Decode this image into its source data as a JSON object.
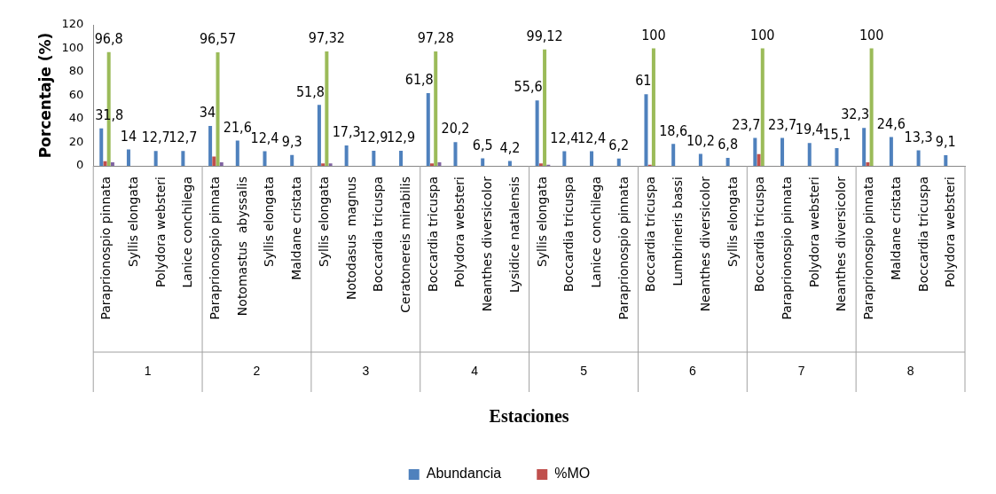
{
  "chart_data": {
    "type": "bar",
    "xlabel": "Estaciones",
    "ylabel": "Porcentaje (%)",
    "categories": [
      "Paraprionospio pinnata",
      "Syllis elongata",
      "Polydora websteri",
      "Lanice conchilega",
      "Paraprionospio pinnata",
      "Notomastus  abyssalis",
      "Syllis elongata",
      "Maldane cristata",
      "Syllis elongata",
      "Notodasus  magnus",
      "Boccardia tricuspa",
      "Ceratonereis mirabilis",
      "Boccardia tricuspa",
      "Polydora websteri",
      "Neanthes diversicolor",
      "Lysidice natalensis",
      "Syllis elongata",
      "Boccardia tricuspa",
      "Lanice conchilega",
      "Paraprionospio pinnata",
      "Boccardia tricuspa",
      "Lumbrineris bassi",
      "Neanthes diversicolor",
      "Syllis elongata",
      "Boccardia tricuspa",
      "Paraprionospio pinnata",
      "Polydora websteri",
      "Neanthes diversicolor",
      "Paraprionospio pinnata",
      "Maldane cristata",
      "Boccardia tricuspa",
      "Polydora websteri"
    ],
    "annotations": [
      "1",
      "2",
      "3",
      "4",
      "5",
      "6",
      "7",
      "8"
    ],
    "series": [
      {
        "name": "Abundancia",
        "color": "#4f81bd",
        "values": [
          31.8,
          14,
          12.7,
          12.7,
          34,
          21.6,
          12.4,
          9.3,
          51.8,
          17.3,
          12.9,
          12.9,
          61.8,
          20.2,
          6.5,
          4.2,
          55.6,
          12.4,
          12.4,
          6.2,
          61,
          18.6,
          10.2,
          6.8,
          23.7,
          23.7,
          19.4,
          15.1,
          32.3,
          24.6,
          13.3,
          9.1
        ],
        "value_labels": [
          "31,8",
          "14",
          "12,7",
          "12,7",
          "34",
          "21,6",
          "12,4",
          "9,3",
          "51,8",
          "17,3",
          "12,9",
          "12,9",
          "61,8",
          "20,2",
          "6,5",
          "4,2",
          "55,6",
          "12,4",
          "12,4",
          "6,2",
          "61",
          "18,6",
          "10,2",
          "6,8",
          "23,7",
          "23,7",
          "19,4",
          "15,1",
          "32,3",
          "24,6",
          "13,3",
          "9,1"
        ]
      },
      {
        "name": "%MO",
        "color": "#c0504d",
        "values": [
          4,
          null,
          null,
          null,
          8,
          null,
          null,
          null,
          2,
          null,
          null,
          null,
          2,
          null,
          null,
          null,
          2,
          null,
          null,
          null,
          1,
          null,
          null,
          null,
          10,
          null,
          null,
          null,
          3,
          null,
          null,
          null
        ]
      },
      {
        "color": "#9bbb59",
        "values": [
          96.8,
          null,
          null,
          null,
          96.57,
          null,
          null,
          null,
          97.32,
          null,
          null,
          null,
          97.28,
          null,
          null,
          null,
          99.12,
          null,
          null,
          null,
          100,
          null,
          null,
          null,
          100,
          null,
          null,
          null,
          100,
          null,
          null,
          null
        ],
        "value_labels": [
          "96,8",
          null,
          null,
          null,
          "96,57",
          null,
          null,
          null,
          "97,32",
          null,
          null,
          null,
          "97,28",
          null,
          null,
          null,
          "99,12",
          null,
          null,
          null,
          "100",
          null,
          null,
          null,
          "100",
          null,
          null,
          null,
          "100",
          null,
          null,
          null
        ]
      },
      {
        "color": "#8064a2",
        "values": [
          3,
          null,
          null,
          null,
          3,
          null,
          null,
          null,
          2,
          null,
          null,
          null,
          3,
          null,
          null,
          null,
          1,
          null,
          null,
          null,
          null,
          null,
          null,
          null,
          null,
          null,
          null,
          null,
          null,
          null,
          null,
          null
        ]
      }
    ],
    "ylim": [
      0,
      120
    ],
    "yticks": [
      0,
      20,
      40,
      60,
      80,
      100,
      120
    ],
    "grid": false,
    "legend": "bottom"
  }
}
